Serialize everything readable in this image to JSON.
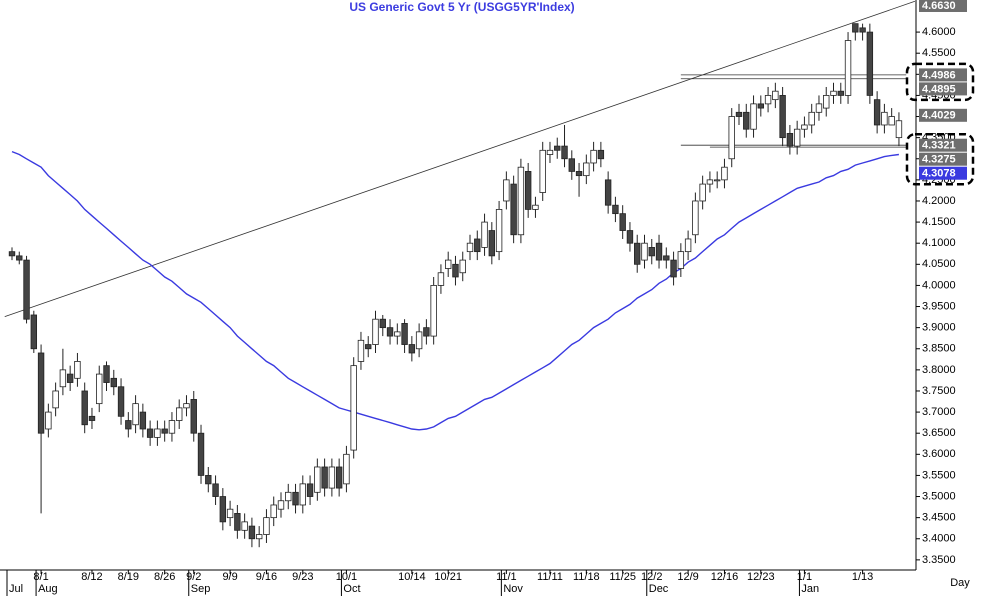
{
  "chart_data": {
    "type": "candlestick",
    "title": "US  Generic  Govt  5  Yr  (USGG5YR'Index)",
    "x_label": "Day",
    "categories": [
      null,
      null,
      null,
      null,
      "8/1",
      null,
      null,
      null,
      null,
      null,
      null,
      "8/12",
      null,
      null,
      null,
      null,
      "8/19",
      null,
      null,
      null,
      null,
      "8/26",
      null,
      null,
      null,
      "9/2",
      null,
      null,
      null,
      null,
      "9/9",
      null,
      null,
      null,
      null,
      "9/16",
      null,
      null,
      null,
      null,
      "9/23",
      null,
      null,
      null,
      null,
      null,
      "10/1",
      null,
      null,
      null,
      null,
      null,
      null,
      null,
      null,
      "10/14",
      null,
      null,
      null,
      null,
      "10/21",
      null,
      null,
      null,
      null,
      null,
      null,
      null,
      "11/1",
      null,
      null,
      null,
      null,
      null,
      "11/11",
      null,
      null,
      null,
      null,
      "11/18",
      null,
      null,
      null,
      null,
      "11/25",
      null,
      null,
      null,
      "12/2",
      null,
      null,
      null,
      null,
      "12/9",
      null,
      null,
      null,
      null,
      "12/16",
      null,
      null,
      null,
      null,
      "12/23",
      null,
      null,
      null,
      null,
      null,
      "1/1",
      null,
      null,
      null,
      null,
      null,
      null,
      null,
      "1/13",
      null,
      null,
      null,
      null,
      null
    ],
    "months": [
      {
        "label": "Jul",
        "start": 0
      },
      {
        "label": "Aug",
        "start": 4
      },
      {
        "label": "Sep",
        "start": 25
      },
      {
        "label": "Oct",
        "start": 46
      },
      {
        "label": "Nov",
        "start": 68
      },
      {
        "label": "Dec",
        "start": 88
      },
      {
        "label": "Jan",
        "start": 109
      }
    ],
    "open": [
      4.08,
      4.07,
      4.06,
      3.93,
      3.84,
      3.66,
      3.71,
      3.76,
      3.79,
      3.78,
      3.75,
      3.69,
      3.72,
      3.81,
      3.78,
      3.76,
      3.68,
      3.67,
      3.7,
      3.66,
      3.64,
      3.66,
      3.65,
      3.68,
      3.71,
      3.73,
      3.65,
      3.55,
      3.53,
      3.5,
      3.45,
      3.46,
      3.42,
      3.43,
      3.4,
      3.41,
      3.45,
      3.47,
      3.49,
      3.51,
      3.48,
      3.53,
      3.51,
      3.57,
      3.52,
      3.57,
      3.53,
      3.61,
      3.82,
      3.86,
      3.86,
      3.92,
      3.9,
      3.88,
      3.91,
      3.86,
      3.85,
      3.9,
      3.88,
      4.0,
      4.04,
      4.05,
      4.03,
      4.08,
      4.11,
      4.09,
      4.13,
      4.08,
      4.2,
      4.24,
      4.12,
      4.27,
      4.18,
      4.22,
      4.31,
      4.33,
      4.33,
      4.3,
      4.27,
      4.26,
      4.29,
      4.32,
      4.25,
      4.19,
      4.17,
      4.13,
      4.1,
      4.06,
      4.09,
      4.1,
      4.07,
      4.06,
      4.04,
      4.08,
      4.12,
      4.2,
      4.24,
      4.25,
      4.25,
      4.3,
      4.41,
      4.41,
      4.37,
      4.43,
      4.43,
      4.44,
      4.45,
      4.36,
      4.33,
      4.37,
      4.38,
      4.41,
      4.42,
      4.45,
      4.46,
      4.45,
      4.62,
      4.61,
      4.6,
      4.44,
      4.38,
      4.38,
      4.35
    ],
    "high": [
      4.09,
      4.08,
      4.07,
      3.94,
      3.86,
      3.72,
      3.77,
      3.85,
      3.81,
      3.84,
      3.77,
      3.71,
      3.81,
      3.82,
      3.8,
      3.78,
      3.7,
      3.74,
      3.72,
      3.68,
      3.68,
      3.68,
      3.7,
      3.73,
      3.74,
      3.75,
      3.67,
      3.57,
      3.55,
      3.52,
      3.49,
      3.48,
      3.46,
      3.45,
      3.43,
      3.47,
      3.5,
      3.51,
      3.53,
      3.53,
      3.55,
      3.55,
      3.59,
      3.59,
      3.59,
      3.59,
      3.62,
      3.83,
      3.89,
      3.88,
      3.94,
      3.93,
      3.92,
      3.91,
      3.92,
      3.88,
      3.91,
      3.92,
      4.02,
      4.05,
      4.08,
      4.07,
      4.08,
      4.12,
      4.13,
      4.17,
      4.15,
      4.2,
      4.27,
      4.26,
      4.3,
      4.29,
      4.21,
      4.34,
      4.34,
      4.35,
      4.38,
      4.32,
      4.29,
      4.31,
      4.34,
      4.34,
      4.27,
      4.21,
      4.19,
      4.15,
      4.12,
      4.12,
      4.11,
      4.12,
      4.09,
      4.08,
      4.1,
      4.13,
      4.22,
      4.26,
      4.27,
      4.27,
      4.3,
      4.42,
      4.43,
      4.43,
      4.45,
      4.45,
      4.47,
      4.48,
      4.47,
      4.38,
      4.39,
      4.4,
      4.43,
      4.45,
      4.47,
      4.48,
      4.48,
      4.6,
      4.62,
      4.62,
      4.62,
      4.46,
      4.43,
      4.42,
      4.41
    ],
    "low": [
      4.06,
      4.05,
      3.91,
      3.84,
      3.46,
      3.64,
      3.69,
      3.74,
      3.75,
      3.76,
      3.65,
      3.66,
      3.7,
      3.75,
      3.74,
      3.67,
      3.64,
      3.65,
      3.64,
      3.62,
      3.62,
      3.63,
      3.63,
      3.66,
      3.69,
      3.63,
      3.53,
      3.51,
      3.48,
      3.42,
      3.43,
      3.4,
      3.4,
      3.38,
      3.38,
      3.39,
      3.43,
      3.45,
      3.47,
      3.46,
      3.46,
      3.48,
      3.49,
      3.5,
      3.5,
      3.5,
      3.51,
      3.59,
      3.8,
      3.83,
      3.84,
      3.88,
      3.86,
      3.86,
      3.84,
      3.82,
      3.83,
      3.86,
      3.86,
      3.98,
      4.02,
      4.0,
      4.01,
      4.06,
      4.06,
      4.07,
      4.05,
      4.06,
      4.18,
      4.1,
      4.1,
      4.16,
      4.16,
      4.2,
      4.29,
      4.3,
      4.28,
      4.25,
      4.21,
      4.24,
      4.27,
      4.28,
      4.17,
      4.15,
      4.11,
      4.08,
      4.03,
      4.04,
      4.05,
      4.04,
      4.04,
      4.0,
      4.02,
      4.06,
      4.1,
      4.18,
      4.22,
      4.23,
      4.23,
      4.28,
      4.38,
      4.35,
      4.35,
      4.4,
      4.41,
      4.42,
      4.33,
      4.31,
      4.31,
      4.35,
      4.36,
      4.39,
      4.4,
      4.43,
      4.43,
      4.43,
      4.58,
      4.58,
      4.43,
      4.36,
      4.36,
      4.38,
      4.33
    ],
    "close": [
      4.07,
      4.06,
      3.92,
      3.85,
      3.65,
      3.7,
      3.75,
      3.8,
      3.77,
      3.82,
      3.67,
      3.68,
      3.79,
      3.77,
      3.76,
      3.69,
      3.66,
      3.72,
      3.66,
      3.64,
      3.66,
      3.65,
      3.68,
      3.71,
      3.72,
      3.65,
      3.55,
      3.53,
      3.5,
      3.44,
      3.47,
      3.42,
      3.44,
      3.4,
      3.41,
      3.45,
      3.48,
      3.49,
      3.51,
      3.48,
      3.53,
      3.5,
      3.57,
      3.52,
      3.57,
      3.52,
      3.6,
      3.81,
      3.87,
      3.85,
      3.92,
      3.9,
      3.88,
      3.89,
      3.86,
      3.84,
      3.89,
      3.88,
      4.0,
      4.03,
      4.06,
      4.02,
      4.06,
      4.1,
      4.08,
      4.15,
      4.07,
      4.18,
      4.25,
      4.12,
      4.28,
      4.18,
      4.19,
      4.32,
      4.32,
      4.32,
      4.3,
      4.27,
      4.26,
      4.29,
      4.32,
      4.3,
      4.19,
      4.17,
      4.13,
      4.1,
      4.05,
      4.1,
      4.07,
      4.06,
      4.06,
      4.02,
      4.08,
      4.11,
      4.2,
      4.24,
      4.25,
      4.25,
      4.28,
      4.4,
      4.4,
      4.37,
      4.43,
      4.42,
      4.45,
      4.46,
      4.35,
      4.33,
      4.37,
      4.38,
      4.41,
      4.43,
      4.45,
      4.46,
      4.45,
      4.58,
      4.6,
      4.6,
      4.45,
      4.38,
      4.41,
      4.4,
      4.39
    ],
    "up_color": "#ffffff",
    "down_color": "#444444",
    "moving_average": {
      "color": "#3a3ae0",
      "values": [
        4.317,
        4.31,
        4.3,
        4.29,
        4.28,
        4.26,
        4.245,
        4.23,
        4.215,
        4.2,
        4.18,
        4.165,
        4.15,
        4.135,
        4.12,
        4.105,
        4.09,
        4.075,
        4.06,
        4.05,
        4.035,
        4.02,
        4.01,
        3.995,
        3.98,
        3.97,
        3.96,
        3.945,
        3.93,
        3.915,
        3.9,
        3.88,
        3.865,
        3.85,
        3.835,
        3.82,
        3.81,
        3.795,
        3.78,
        3.77,
        3.76,
        3.75,
        3.74,
        3.73,
        3.72,
        3.71,
        3.705,
        3.7,
        3.695,
        3.69,
        3.685,
        3.68,
        3.675,
        3.67,
        3.665,
        3.66,
        3.658,
        3.66,
        3.665,
        3.675,
        3.685,
        3.69,
        3.7,
        3.71,
        3.72,
        3.73,
        3.735,
        3.745,
        3.755,
        3.765,
        3.775,
        3.785,
        3.795,
        3.805,
        3.815,
        3.83,
        3.845,
        3.86,
        3.87,
        3.885,
        3.9,
        3.91,
        3.92,
        3.935,
        3.945,
        3.955,
        3.97,
        3.98,
        3.99,
        4.005,
        4.015,
        4.03,
        4.04,
        4.055,
        4.065,
        4.08,
        4.095,
        4.11,
        4.12,
        4.135,
        4.15,
        4.16,
        4.17,
        4.18,
        4.19,
        4.2,
        4.21,
        4.22,
        4.23,
        4.235,
        4.24,
        4.245,
        4.255,
        4.26,
        4.27,
        4.275,
        4.285,
        4.29,
        4.295,
        4.3,
        4.305,
        4.308,
        4.31
      ]
    },
    "trend_line": {
      "x": [
        -1,
        124.2
      ],
      "y": [
        3.926,
        4.673
      ]
    },
    "level_lines": [
      {
        "value": 4.4986,
        "from": 92,
        "to": 123
      },
      {
        "value": 4.4895,
        "from": 92,
        "to": 123
      },
      {
        "value": 4.3321,
        "from": 92,
        "to": 123
      },
      {
        "value": 4.3275,
        "from": 96,
        "to": 123
      }
    ],
    "price_labels": [
      {
        "value": 4.663,
        "label": "4.6630",
        "color": "#6e6e6e"
      },
      {
        "value": 4.4986,
        "label": "4.4986",
        "color": "#6e6e6e"
      },
      {
        "value": 4.4895,
        "label": "4.4895",
        "color": "#6e6e6e"
      },
      {
        "value": 4.4029,
        "label": "4.4029",
        "color": "#6e6e6e"
      },
      {
        "value": 4.3321,
        "label": "4.3321",
        "color": "#6e6e6e"
      },
      {
        "value": 4.3275,
        "label": "4.3275",
        "color": "#6e6e6e"
      },
      {
        "value": 4.3078,
        "label": "4.3078",
        "color": "#3a3ae0"
      }
    ],
    "ylim": [
      3.326,
      4.676
    ],
    "yticks": [
      {
        "value": 3.35,
        "label": "3.3500"
      },
      {
        "value": 3.4,
        "label": "3.4000"
      },
      {
        "value": 3.45,
        "label": "3.4500"
      },
      {
        "value": 3.5,
        "label": "3.5000"
      },
      {
        "value": 3.55,
        "label": "3.5500"
      },
      {
        "value": 3.6,
        "label": "3.6000"
      },
      {
        "value": 3.65,
        "label": "3.6500"
      },
      {
        "value": 3.7,
        "label": "3.7000"
      },
      {
        "value": 3.75,
        "label": "3.7500"
      },
      {
        "value": 3.8,
        "label": "3.8000"
      },
      {
        "value": 3.85,
        "label": "3.8500"
      },
      {
        "value": 3.9,
        "label": "3.9000"
      },
      {
        "value": 3.95,
        "label": "3.9500"
      },
      {
        "value": 4.0,
        "label": "4.0000"
      },
      {
        "value": 4.05,
        "label": "4.0500"
      },
      {
        "value": 4.1,
        "label": "4.1000"
      },
      {
        "value": 4.15,
        "label": "4.1500"
      },
      {
        "value": 4.2,
        "label": "4.2000"
      },
      {
        "value": 4.25,
        "label": "4.2500"
      },
      {
        "value": 4.3,
        "label": "4.3000"
      },
      {
        "value": 4.35,
        "label": "4.3500"
      },
      {
        "value": 4.4,
        "label": "4.4000"
      },
      {
        "value": 4.45,
        "label": "4.4500"
      },
      {
        "value": 4.5,
        "label": "4.5000"
      },
      {
        "value": 4.55,
        "label": "4.5500"
      },
      {
        "value": 4.6,
        "label": "4.6000"
      }
    ]
  }
}
